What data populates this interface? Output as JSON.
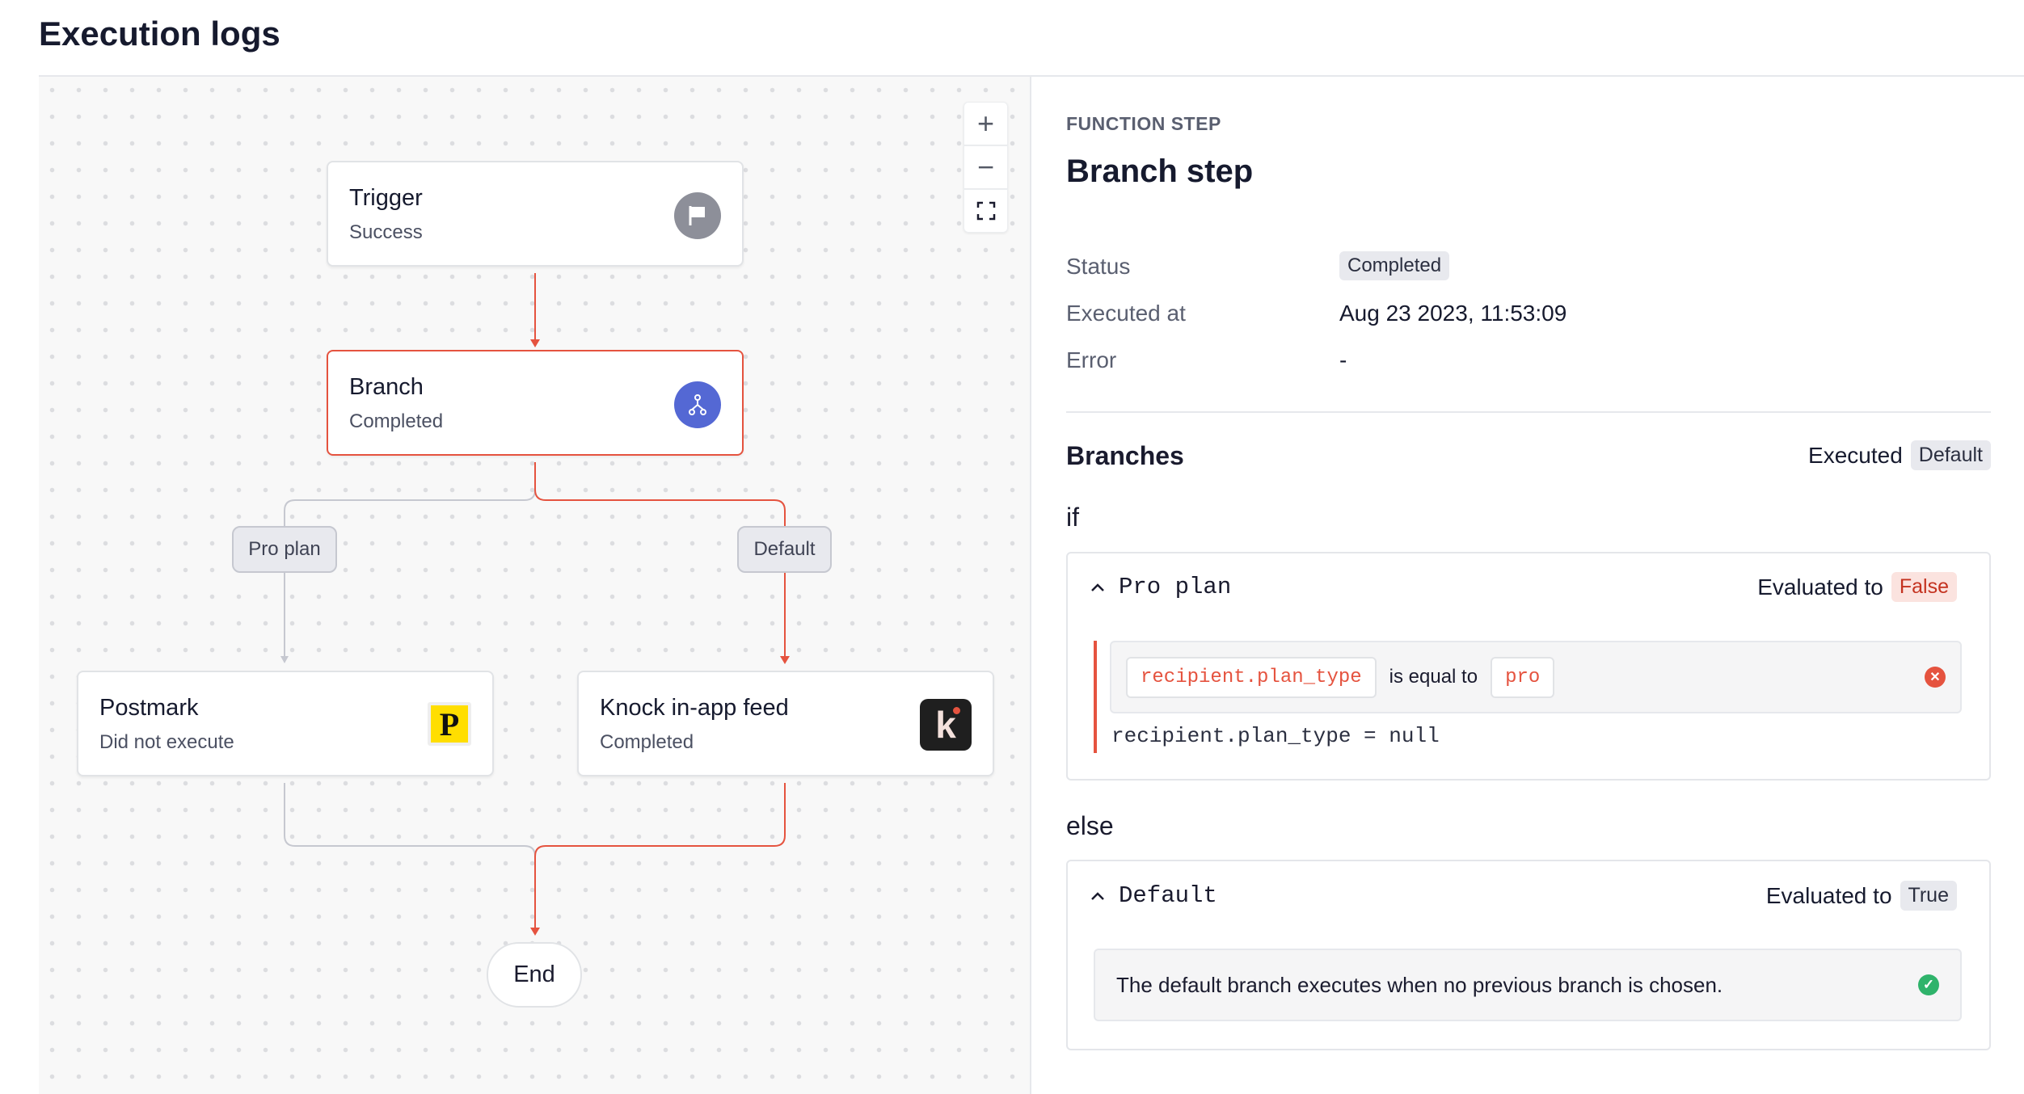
{
  "page": {
    "title": "Execution logs"
  },
  "canvas": {
    "controls": {
      "zoom_in": "+",
      "zoom_out": "−"
    },
    "nodes": {
      "trigger": {
        "title": "Trigger",
        "status": "Success",
        "icon": "flag-icon"
      },
      "branch": {
        "title": "Branch",
        "status": "Completed",
        "icon": "branch-icon",
        "color": "#5468d4"
      },
      "postmark": {
        "title": "Postmark",
        "status": "Did not execute",
        "icon": "postmark-logo",
        "logo_text": "P"
      },
      "knock": {
        "title": "Knock in-app feed",
        "status": "Completed",
        "icon": "knock-logo",
        "logo_text": "k"
      },
      "end": {
        "title": "End"
      }
    },
    "edge_labels": {
      "pro_plan": "Pro plan",
      "default": "Default"
    },
    "colors": {
      "active_path": "#e5533f",
      "inactive_path": "#c6c8d0"
    }
  },
  "panel": {
    "eyebrow": "FUNCTION STEP",
    "title": "Branch step",
    "fields": [
      {
        "label": "Status",
        "value": "Completed"
      },
      {
        "label": "Executed at",
        "value": "Aug 23 2023, 11:53:09"
      },
      {
        "label": "Error",
        "value": "-"
      }
    ],
    "branches": {
      "heading": "Branches",
      "executed_label": "Executed",
      "executed_value": "Default",
      "if_label": "if",
      "else_label": "else",
      "pro_plan": {
        "name": "Pro plan",
        "evaluated_label": "Evaluated to",
        "result": "False",
        "condition": {
          "left": "recipient.plan_type",
          "operator": "is equal to",
          "right": "pro"
        },
        "actual": "recipient.plan_type = null"
      },
      "default": {
        "name": "Default",
        "evaluated_label": "Evaluated to",
        "result": "True",
        "description": "The default branch executes when no previous branch is chosen."
      }
    }
  }
}
